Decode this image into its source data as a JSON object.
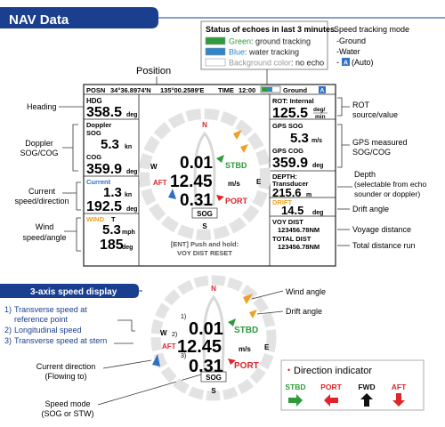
{
  "header": {
    "title": "NAV Data"
  },
  "status_legend": {
    "title": "Status of echoes in last 3 minutes.",
    "rows": [
      {
        "color_word": "Green",
        "rest": ": ground tracking",
        "swatch": "#2e9b3a",
        "word_color": "#2e9b3a"
      },
      {
        "color_word": "Blue",
        "rest": ": water tracking",
        "swatch": "#2f86c9",
        "word_color": "#2f86c9"
      },
      {
        "color_word": "Background color",
        "rest": ": no echo",
        "swatch": "#ffffff",
        "word_color": "#999999"
      }
    ]
  },
  "speed_mode_legend": {
    "title": "Speed tracking mode",
    "items": [
      "-Ground",
      "-Water"
    ],
    "auto_prefix": "-",
    "auto_badge": "A",
    "auto_text": "(Auto)"
  },
  "position_label": "Position",
  "display": {
    "posn_label": "POSN",
    "lat": "34°36.8974'N",
    "lon": "135°00.2589'E",
    "time_label": "TIME",
    "time": "12:00",
    "mode_text": "Ground",
    "mode_badge": "A",
    "left": {
      "hdg_label": "HDG",
      "hdg_value": "358.5",
      "hdg_unit": "deg",
      "doppler_label": "Doppler",
      "sog_label": "SOG",
      "sog_value": "5.3",
      "sog_unit": "kn",
      "cog_label": "COG",
      "cog_value": "359.9",
      "cog_unit": "deg",
      "current_label": "Current",
      "current_speed": "1.3",
      "current_speed_unit": "kn",
      "current_dir": "192.5",
      "current_dir_unit": "deg",
      "wind_label": "WIND",
      "wind_suffix": "T",
      "wind_speed": "5.3",
      "wind_speed_unit": "mph",
      "wind_angle": "185",
      "wind_angle_unit": "deg"
    },
    "right": {
      "rot_label": "ROT: Internal",
      "rot_value": "125.5",
      "rot_unit_top": "deg/",
      "rot_unit_bottom": "min",
      "gps_sog_label": "GPS SOG",
      "gps_sog_value": "5.3",
      "gps_sog_unit": "m/s",
      "gps_cog_label": "GPS COG",
      "gps_cog_value": "359.9",
      "gps_cog_unit": "deg",
      "depth_label": "DEPTH:",
      "depth_source": "Transducer",
      "depth_value": "215.6",
      "depth_unit": "m",
      "drift_label": "DRIFT",
      "drift_value": "14.5",
      "drift_unit": "deg",
      "voy_label": "VOY DIST",
      "voy_value": "123456.78NM",
      "total_label": "TOTAL DIST",
      "total_value": "123456.78NM"
    },
    "center": {
      "north": "N",
      "south": "S",
      "east": "E",
      "west": "W",
      "stbd_value": "0.01",
      "stbd_label": "STBD",
      "aft_label": "AFT",
      "long_value": "12.45",
      "long_unit": "m/s",
      "port_value": "0.31",
      "port_label": "PORT",
      "sog_box": "SOG",
      "reset_line1": "[ENT] Push and hold:",
      "reset_line2": "VOY DIST RESET"
    }
  },
  "callouts_left": {
    "heading": "Heading",
    "doppler_1": "Doppler",
    "doppler_2": "SOG/COG",
    "current_1": "Current",
    "current_2": "speed/direction",
    "wind_1": "Wind",
    "wind_2": "speed/angle"
  },
  "callouts_right": {
    "rot_1": "ROT",
    "rot_2": "source/value",
    "gps_1": "GPS measured",
    "gps_2": "SOG/COG",
    "depth_1": "Depth",
    "depth_2": "(selectable from echo",
    "depth_3": "sounder or doppler)",
    "drift": "Drift angle",
    "voy": "Voyage distance",
    "total": "Total distance run"
  },
  "axis_section": {
    "title": "3-axis speed display",
    "items": [
      {
        "num": "1)",
        "text1": "Transverse speed at",
        "text2": "reference point"
      },
      {
        "num": "2)",
        "text1": "Longitudinal speed",
        "text2": ""
      },
      {
        "num": "3)",
        "text1": "Transverse speed at stern",
        "text2": ""
      }
    ],
    "current_1": "Current direction",
    "current_2": "(Flowing to)",
    "mode_1": "Speed mode",
    "mode_2": "(SOG or STW)",
    "wind_angle": "Wind angle",
    "drift_angle": "Drift angle",
    "n1": "1)",
    "n2": "2)",
    "n3": "3)"
  },
  "direction_indicator": {
    "title": "Direction indicator",
    "bullet": "•",
    "items": [
      {
        "label": "STBD",
        "color": "#2e9b3a"
      },
      {
        "label": "PORT",
        "color": "#e0242a"
      },
      {
        "label": "FWD",
        "color": "#111111"
      },
      {
        "label": "AFT",
        "color": "#e0242a"
      }
    ]
  },
  "colors": {
    "blue_header": "#1a3f8f",
    "green": "#2e9b3a",
    "red": "#e0242a",
    "blue": "#2f6fc4",
    "orange": "#f0a020"
  }
}
